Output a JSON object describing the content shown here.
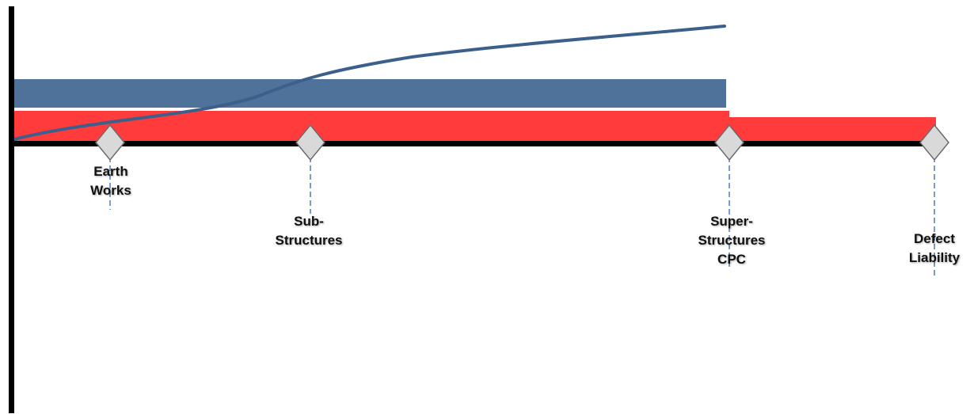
{
  "colors": {
    "axis": "#000000",
    "blue_bar": "#4f729a",
    "red_bar": "#ff3b3b",
    "curve": "#3d5f8c",
    "diamond_fill": "#d9d9d9",
    "diamond_stroke": "#6b6b6b",
    "leader_line": "#4a7cc0"
  },
  "milestones": [
    {
      "id": "earth-works",
      "lines": [
        "Earth",
        "Works"
      ]
    },
    {
      "id": "sub-structures",
      "lines": [
        "Sub-",
        "Structures"
      ]
    },
    {
      "id": "super-structures",
      "lines": [
        "Super-",
        "Structures",
        "CPC"
      ]
    },
    {
      "id": "defect-liability",
      "lines": [
        "Defect",
        "Liability"
      ]
    }
  ]
}
